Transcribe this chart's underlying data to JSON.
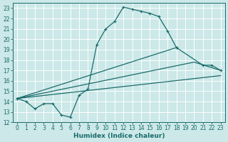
{
  "title": "",
  "xlabel": "Humidex (Indice chaleur)",
  "bg_color": "#cce8e8",
  "grid_color": "#ffffff",
  "line_color": "#1a6b6b",
  "xlim": [
    -0.5,
    23.5
  ],
  "ylim": [
    12,
    23.5
  ],
  "yticks": [
    12,
    13,
    14,
    15,
    16,
    17,
    18,
    19,
    20,
    21,
    22,
    23
  ],
  "xticks": [
    0,
    1,
    2,
    3,
    4,
    5,
    6,
    7,
    8,
    9,
    10,
    11,
    12,
    13,
    14,
    15,
    16,
    17,
    18,
    19,
    20,
    21,
    22,
    23
  ],
  "main_curve_x": [
    0,
    1,
    2,
    3,
    4,
    5,
    6,
    7,
    8,
    9,
    10,
    11,
    12,
    13,
    14,
    15,
    16,
    17,
    18
  ],
  "main_curve_y": [
    14.3,
    14.0,
    13.3,
    13.8,
    13.8,
    12.7,
    12.5,
    14.6,
    15.2,
    19.5,
    21.0,
    21.7,
    23.1,
    22.9,
    22.7,
    22.5,
    22.2,
    20.8,
    19.2
  ],
  "line1_x": [
    0,
    18,
    21,
    22,
    23
  ],
  "line1_y": [
    14.3,
    19.2,
    17.5,
    17.5,
    17.0
  ],
  "line2_x": [
    0,
    20,
    23
  ],
  "line2_y": [
    14.3,
    17.8,
    17.0
  ],
  "line3_x": [
    0,
    23
  ],
  "line3_y": [
    14.3,
    16.5
  ],
  "xlabel_fontsize": 6.5,
  "tick_fontsize": 5.5
}
